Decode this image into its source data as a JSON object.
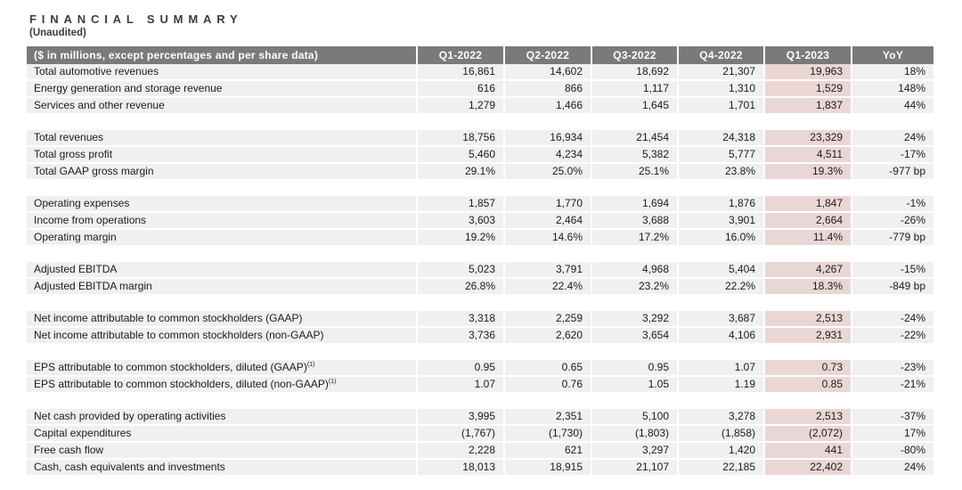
{
  "title": "FINANCIAL SUMMARY",
  "subtitle": "(Unaudited)",
  "colors": {
    "header_bg": "#7a7a7a",
    "header_text": "#ffffff",
    "row_bg": "#f0f0f0",
    "highlight_bg": "#ead7d5",
    "body_text": "#1b1b1b"
  },
  "table": {
    "header_label": "($ in millions, except percentages and per share data)",
    "columns": [
      "Q1-2022",
      "Q2-2022",
      "Q3-2022",
      "Q4-2022",
      "Q1-2023",
      "YoY"
    ],
    "highlight_column": "Q1-2023",
    "sections": [
      {
        "rows": [
          {
            "label": "Total automotive revenues",
            "values": [
              "16,861",
              "14,602",
              "18,692",
              "21,307",
              "19,963",
              "18%"
            ]
          },
          {
            "label": "Energy generation and storage revenue",
            "values": [
              "616",
              "866",
              "1,117",
              "1,310",
              "1,529",
              "148%"
            ]
          },
          {
            "label": "Services and other revenue",
            "values": [
              "1,279",
              "1,466",
              "1,645",
              "1,701",
              "1,837",
              "44%"
            ]
          }
        ]
      },
      {
        "rows": [
          {
            "label": "Total revenues",
            "values": [
              "18,756",
              "16,934",
              "21,454",
              "24,318",
              "23,329",
              "24%"
            ]
          },
          {
            "label": "Total gross profit",
            "values": [
              "5,460",
              "4,234",
              "5,382",
              "5,777",
              "4,511",
              "-17%"
            ]
          },
          {
            "label": "Total GAAP gross margin",
            "values": [
              "29.1%",
              "25.0%",
              "25.1%",
              "23.8%",
              "19.3%",
              "-977 bp"
            ]
          }
        ]
      },
      {
        "rows": [
          {
            "label": "Operating expenses",
            "values": [
              "1,857",
              "1,770",
              "1,694",
              "1,876",
              "1,847",
              "-1%"
            ]
          },
          {
            "label": "Income from operations",
            "values": [
              "3,603",
              "2,464",
              "3,688",
              "3,901",
              "2,664",
              "-26%"
            ]
          },
          {
            "label": "Operating margin",
            "values": [
              "19.2%",
              "14.6%",
              "17.2%",
              "16.0%",
              "11.4%",
              "-779 bp"
            ]
          }
        ]
      },
      {
        "rows": [
          {
            "label": "Adjusted EBITDA",
            "values": [
              "5,023",
              "3,791",
              "4,968",
              "5,404",
              "4,267",
              "-15%"
            ]
          },
          {
            "label": "Adjusted EBITDA margin",
            "values": [
              "26.8%",
              "22.4%",
              "23.2%",
              "22.2%",
              "18.3%",
              "-849 bp"
            ]
          }
        ]
      },
      {
        "rows": [
          {
            "label": "Net income attributable to common stockholders (GAAP)",
            "values": [
              "3,318",
              "2,259",
              "3,292",
              "3,687",
              "2,513",
              "-24%"
            ]
          },
          {
            "label": "Net income attributable to common stockholders (non-GAAP)",
            "values": [
              "3,736",
              "2,620",
              "3,654",
              "4,106",
              "2,931",
              "-22%"
            ]
          }
        ]
      },
      {
        "rows": [
          {
            "label": "EPS attributable to common stockholders, diluted (GAAP)",
            "superscript": "(1)",
            "values": [
              "0.95",
              "0.65",
              "0.95",
              "1.07",
              "0.73",
              "-23%"
            ]
          },
          {
            "label": "EPS attributable to common stockholders, diluted (non-GAAP)",
            "superscript": "(1)",
            "values": [
              "1.07",
              "0.76",
              "1.05",
              "1.19",
              "0.85",
              "-21%"
            ]
          }
        ]
      },
      {
        "rows": [
          {
            "label": "Net cash provided by operating activities",
            "values": [
              "3,995",
              "2,351",
              "5,100",
              "3,278",
              "2,513",
              "-37%"
            ]
          },
          {
            "label": "Capital expenditures",
            "values": [
              "(1,767)",
              "(1,730)",
              "(1,803)",
              "(1,858)",
              "(2,072)",
              "17%"
            ]
          },
          {
            "label": "Free cash flow",
            "values": [
              "2,228",
              "621",
              "3,297",
              "1,420",
              "441",
              "-80%"
            ]
          },
          {
            "label": "Cash, cash equivalents and investments",
            "values": [
              "18,013",
              "18,915",
              "21,107",
              "22,185",
              "22,402",
              "24%"
            ]
          }
        ]
      }
    ]
  }
}
